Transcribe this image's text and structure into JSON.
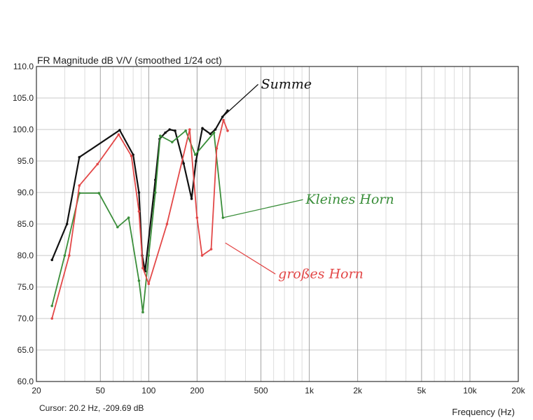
{
  "chart_data": {
    "type": "line",
    "title": "FR Magnitude dB V/V (smoothed 1/24 oct)",
    "xlabel": "Frequency (Hz)",
    "ylabel": "",
    "x_scale": "log",
    "xlim": [
      20,
      20000
    ],
    "ylim": [
      60,
      110
    ],
    "x_ticks": [
      {
        "v": 20,
        "label": "20"
      },
      {
        "v": 50,
        "label": "50"
      },
      {
        "v": 100,
        "label": "100"
      },
      {
        "v": 200,
        "label": "200"
      },
      {
        "v": 500,
        "label": "500"
      },
      {
        "v": 1000,
        "label": "1k"
      },
      {
        "v": 2000,
        "label": "2k"
      },
      {
        "v": 5000,
        "label": "5k"
      },
      {
        "v": 10000,
        "label": "10k"
      },
      {
        "v": 20000,
        "label": "20k"
      }
    ],
    "y_ticks": [
      {
        "v": 60,
        "label": "60.0"
      },
      {
        "v": 65,
        "label": "65.0"
      },
      {
        "v": 70,
        "label": "70.0"
      },
      {
        "v": 75,
        "label": "75.0"
      },
      {
        "v": 80,
        "label": "80.0"
      },
      {
        "v": 85,
        "label": "85.0"
      },
      {
        "v": 90,
        "label": "90.0"
      },
      {
        "v": 95,
        "label": "95.0"
      },
      {
        "v": 100,
        "label": "100.0"
      },
      {
        "v": 105,
        "label": "105.0"
      },
      {
        "v": 110,
        "label": "110.0"
      }
    ],
    "grid": true,
    "cursor": "Cursor: 20.2 Hz, -209.69 dB",
    "series": [
      {
        "name": "Summe",
        "color": "#111111",
        "points": [
          [
            25,
            79.3
          ],
          [
            31,
            85
          ],
          [
            37,
            95.6
          ],
          [
            66,
            99.9
          ],
          [
            80,
            96
          ],
          [
            87,
            90
          ],
          [
            91,
            80
          ],
          [
            95,
            77.5
          ],
          [
            110,
            92
          ],
          [
            117,
            98.5
          ],
          [
            127,
            99.5
          ],
          [
            135,
            100
          ],
          [
            146,
            99.8
          ],
          [
            165,
            94.6
          ],
          [
            185,
            89
          ],
          [
            197,
            95
          ],
          [
            216,
            100.2
          ],
          [
            242,
            99.3
          ],
          [
            260,
            100
          ],
          [
            288,
            102
          ],
          [
            310,
            103
          ]
        ]
      },
      {
        "name": "Kleines Horn",
        "color": "#3a8e3a",
        "points": [
          [
            25,
            72
          ],
          [
            30,
            80
          ],
          [
            37,
            89.9
          ],
          [
            49,
            89.9
          ],
          [
            64,
            84.5
          ],
          [
            75,
            86
          ],
          [
            87,
            76
          ],
          [
            92,
            71
          ],
          [
            100,
            80
          ],
          [
            110,
            90
          ],
          [
            118,
            99
          ],
          [
            140,
            98
          ],
          [
            170,
            99.8
          ],
          [
            195,
            96
          ],
          [
            255,
            99.5
          ],
          [
            290,
            86
          ]
        ]
      },
      {
        "name": "großes Horn",
        "color": "#e34848",
        "points": [
          [
            25,
            70
          ],
          [
            32,
            80
          ],
          [
            37,
            91.1
          ],
          [
            48,
            94.5
          ],
          [
            65,
            99.2
          ],
          [
            78,
            95.8
          ],
          [
            87,
            87
          ],
          [
            92,
            78
          ],
          [
            100,
            75.5
          ],
          [
            130,
            85
          ],
          [
            180,
            100
          ],
          [
            200,
            86
          ],
          [
            215,
            80
          ],
          [
            245,
            81
          ],
          [
            265,
            97
          ],
          [
            292,
            101.5
          ],
          [
            310,
            99.8
          ]
        ]
      }
    ],
    "annotations": [
      {
        "text": "Summe",
        "color": "#111111",
        "x": 500,
        "y": 106.5,
        "arrow_to": [
          288,
          102
        ]
      },
      {
        "text": "Kleines Horn",
        "color": "#3a8e3a",
        "x": 950,
        "y": 88.2,
        "arrow_to": [
          290,
          86
        ]
      },
      {
        "text": "großes Horn",
        "color": "#e34848",
        "x": 640,
        "y": 76.4,
        "arrow_to": [
          300,
          82
        ]
      }
    ]
  }
}
